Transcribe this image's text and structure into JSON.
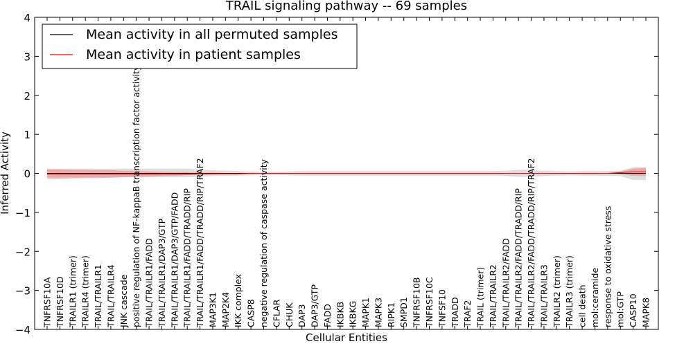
{
  "chart_data": {
    "type": "line",
    "title": "TRAIL signaling pathway -- 69 samples",
    "xlabel": "Cellular Entities",
    "ylabel": "Inferred Activity",
    "ylim": [
      -4,
      4
    ],
    "yticks": [
      -4,
      -3,
      -2,
      -1,
      0,
      1,
      2,
      3,
      4
    ],
    "grid": false,
    "legend_position": "top-left",
    "categories": [
      "TNFRSF10A",
      "TNFRSF10D",
      "TRAILR1 (trimer)",
      "TRAILR4 (trimer)",
      "TRAIL/TRAILR1",
      "TRAIL/TRAILR4",
      "JNK cascade",
      "positive regulation of NF-kappaB transcription factor activity",
      "TRAIL/TRAILR1/FADD",
      "TRAIL/TRAILR1/DAP3/GTP",
      "TRAIL/TRAILR1/DAP3/GTP/FADD",
      "TRAIL/TRAILR1/FADD/TRADD/RIP",
      "TRAIL/TRAILR1/FADD/TRADD/RIP/TRAF2",
      "MAP3K1",
      "MAP2K4",
      "IKK complex",
      "CASP8",
      "negative regulation of caspase activity",
      "CFLAR",
      "CHUK",
      "DAP3",
      "DAP3/GTP",
      "FADD",
      "IKBKB",
      "IKBKG",
      "MAPK1",
      "MAPK3",
      "RIPK1",
      "SMPD1",
      "TNFRSF10B",
      "TNFRSF10C",
      "TNFSF10",
      "TRADD",
      "TRAF2",
      "TRAIL (trimer)",
      "TRAIL/TRAILR2",
      "TRAIL/TRAILR2/FADD",
      "TRAIL/TRAILR2/FADD/TRADD/RIP",
      "TRAIL/TRAILR2/FADD/TRADD/RIP/TRAF2",
      "TRAIL/TRAILR3",
      "TRAILR2 (trimer)",
      "TRAILR3 (trimer)",
      "cell death",
      "mol:ceramide",
      "response to oxidative stress",
      "mol:GTP",
      "CASP10",
      "MAPK8"
    ],
    "series": [
      {
        "name": "Mean activity in all permuted samples",
        "color": "#000000",
        "values": [
          0,
          0,
          0,
          0,
          0,
          0,
          0,
          0,
          0,
          0,
          0,
          0,
          0,
          0,
          0,
          0,
          0,
          0,
          0,
          0,
          0,
          0,
          0,
          0,
          0,
          0,
          0,
          0,
          0,
          0,
          0,
          0,
          0,
          0,
          0,
          0,
          0,
          0,
          0,
          0,
          0,
          0,
          0,
          0,
          0,
          0,
          0,
          0
        ],
        "band_lower": [
          -0.1,
          -0.1,
          -0.1,
          -0.1,
          -0.1,
          -0.1,
          -0.1,
          -0.1,
          -0.1,
          -0.1,
          -0.1,
          -0.1,
          -0.09,
          -0.07,
          -0.06,
          -0.06,
          -0.05,
          -0.04,
          -0.04,
          -0.05,
          -0.06,
          -0.06,
          -0.06,
          -0.06,
          -0.06,
          -0.06,
          -0.06,
          -0.06,
          -0.06,
          -0.06,
          -0.06,
          -0.06,
          -0.06,
          -0.06,
          -0.06,
          -0.06,
          -0.07,
          -0.09,
          -0.09,
          -0.07,
          -0.06,
          -0.05,
          -0.06,
          -0.06,
          -0.06,
          -0.07,
          -0.17,
          -0.17
        ],
        "band_upper": [
          0.12,
          0.12,
          0.12,
          0.12,
          0.12,
          0.12,
          0.12,
          0.12,
          0.12,
          0.12,
          0.12,
          0.12,
          0.1,
          0.08,
          0.07,
          0.06,
          0.05,
          0.04,
          0.04,
          0.05,
          0.06,
          0.06,
          0.06,
          0.06,
          0.06,
          0.06,
          0.06,
          0.06,
          0.06,
          0.06,
          0.06,
          0.06,
          0.06,
          0.06,
          0.06,
          0.06,
          0.07,
          0.09,
          0.09,
          0.07,
          0.06,
          0.05,
          0.06,
          0.06,
          0.06,
          0.07,
          0.16,
          0.16
        ]
      },
      {
        "name": "Mean activity in patient samples",
        "color": "#ff0000",
        "values": [
          -0.02,
          -0.02,
          -0.02,
          -0.02,
          -0.02,
          -0.02,
          -0.02,
          -0.02,
          -0.02,
          -0.02,
          -0.02,
          -0.02,
          -0.01,
          -0.01,
          -0.01,
          -0.01,
          0,
          0,
          0,
          0,
          0,
          0,
          0,
          0,
          0,
          0,
          0,
          0,
          0,
          0,
          0,
          0,
          0,
          0,
          0,
          0,
          0,
          0,
          0,
          0,
          0,
          0,
          0,
          0,
          0,
          0.02,
          0.04,
          0.04
        ],
        "band_lower": [
          -0.14,
          -0.14,
          -0.13,
          -0.12,
          -0.12,
          -0.11,
          -0.1,
          -0.09,
          -0.08,
          -0.07,
          -0.06,
          -0.05,
          -0.04,
          -0.03,
          -0.02,
          -0.02,
          -0.01,
          -0.01,
          -0.01,
          -0.01,
          -0.01,
          -0.01,
          -0.01,
          -0.01,
          -0.01,
          -0.01,
          -0.01,
          -0.01,
          -0.01,
          -0.01,
          -0.01,
          -0.01,
          -0.01,
          -0.01,
          -0.01,
          -0.01,
          -0.01,
          -0.01,
          -0.01,
          -0.01,
          -0.01,
          -0.01,
          -0.01,
          -0.01,
          -0.01,
          -0.02,
          -0.06,
          -0.07
        ],
        "band_upper": [
          0.1,
          0.1,
          0.09,
          0.09,
          0.08,
          0.08,
          0.07,
          0.06,
          0.05,
          0.04,
          0.03,
          0.03,
          0.02,
          0.02,
          0.01,
          0.01,
          0.01,
          0.01,
          0.01,
          0.01,
          0.01,
          0.01,
          0.01,
          0.01,
          0.01,
          0.01,
          0.01,
          0.01,
          0.01,
          0.01,
          0.01,
          0.01,
          0.01,
          0.01,
          0.01,
          0.01,
          0.01,
          0.01,
          0.01,
          0.01,
          0.01,
          0.01,
          0.01,
          0.01,
          0.01,
          0.04,
          0.12,
          0.14
        ]
      }
    ],
    "colors": {
      "permuted_band": "#c8c8c8",
      "patient_band": "#f08080"
    }
  }
}
